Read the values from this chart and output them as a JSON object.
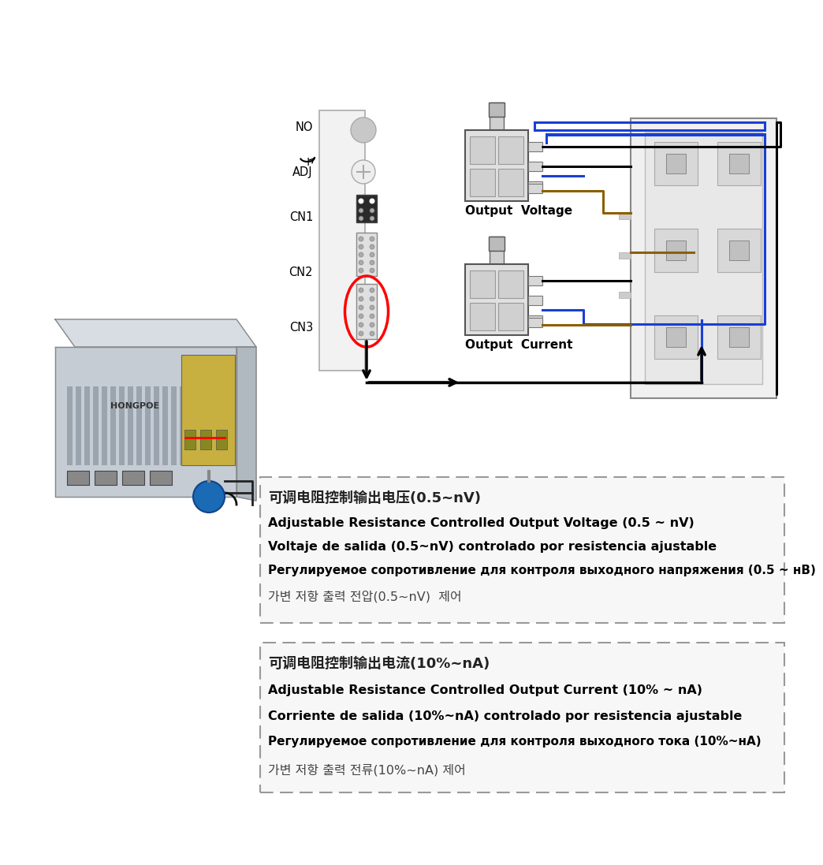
{
  "bg_color": "#ffffff",
  "box1_lines": [
    [
      "可调电阻控制输出电压(0.5~nV)",
      "bold",
      13,
      "#222222"
    ],
    [
      "Adjustable Resistance Controlled Output Voltage (0.5 ~ nV)",
      "bold",
      11.5,
      "#000000"
    ],
    [
      "Voltaje de salida (0.5~nV) controlado por resistencia ajustable",
      "bold",
      11.5,
      "#000000"
    ],
    [
      "Регулируемое сопротивление для контроля выходного напряжения (0.5 ~ нВ)",
      "bold",
      11.0,
      "#000000"
    ],
    [
      "가변 저항 출력 전압(0.5~nV)  제어",
      "normal",
      11.5,
      "#444444"
    ]
  ],
  "box2_lines": [
    [
      "可调电阻控制输出电流(10%~nA)",
      "bold",
      13,
      "#222222"
    ],
    [
      "Adjustable Resistance Controlled Output Current (10% ~ nA)",
      "bold",
      11.5,
      "#000000"
    ],
    [
      "Corriente de salida (10%~nA) controlado por resistencia ajustable",
      "bold",
      11.5,
      "#000000"
    ],
    [
      "Регулируемое сопротивление для контроля выходного тока (10%~нА)",
      "bold",
      11.0,
      "#000000"
    ],
    [
      "가변 저항 출력 전류(10%~nA) 제어",
      "normal",
      11.5,
      "#444444"
    ]
  ],
  "panel_labels": [
    [
      "NO",
      152
    ],
    [
      "+",
      196
    ],
    [
      "ADJ",
      208
    ],
    [
      "CN1",
      265
    ],
    [
      "CN2",
      335
    ],
    [
      "CN3",
      405
    ]
  ],
  "wire_lw": 2.2,
  "black_color": "#000000",
  "blue_color": "#1a3fd4",
  "brown_color": "#8b6000"
}
